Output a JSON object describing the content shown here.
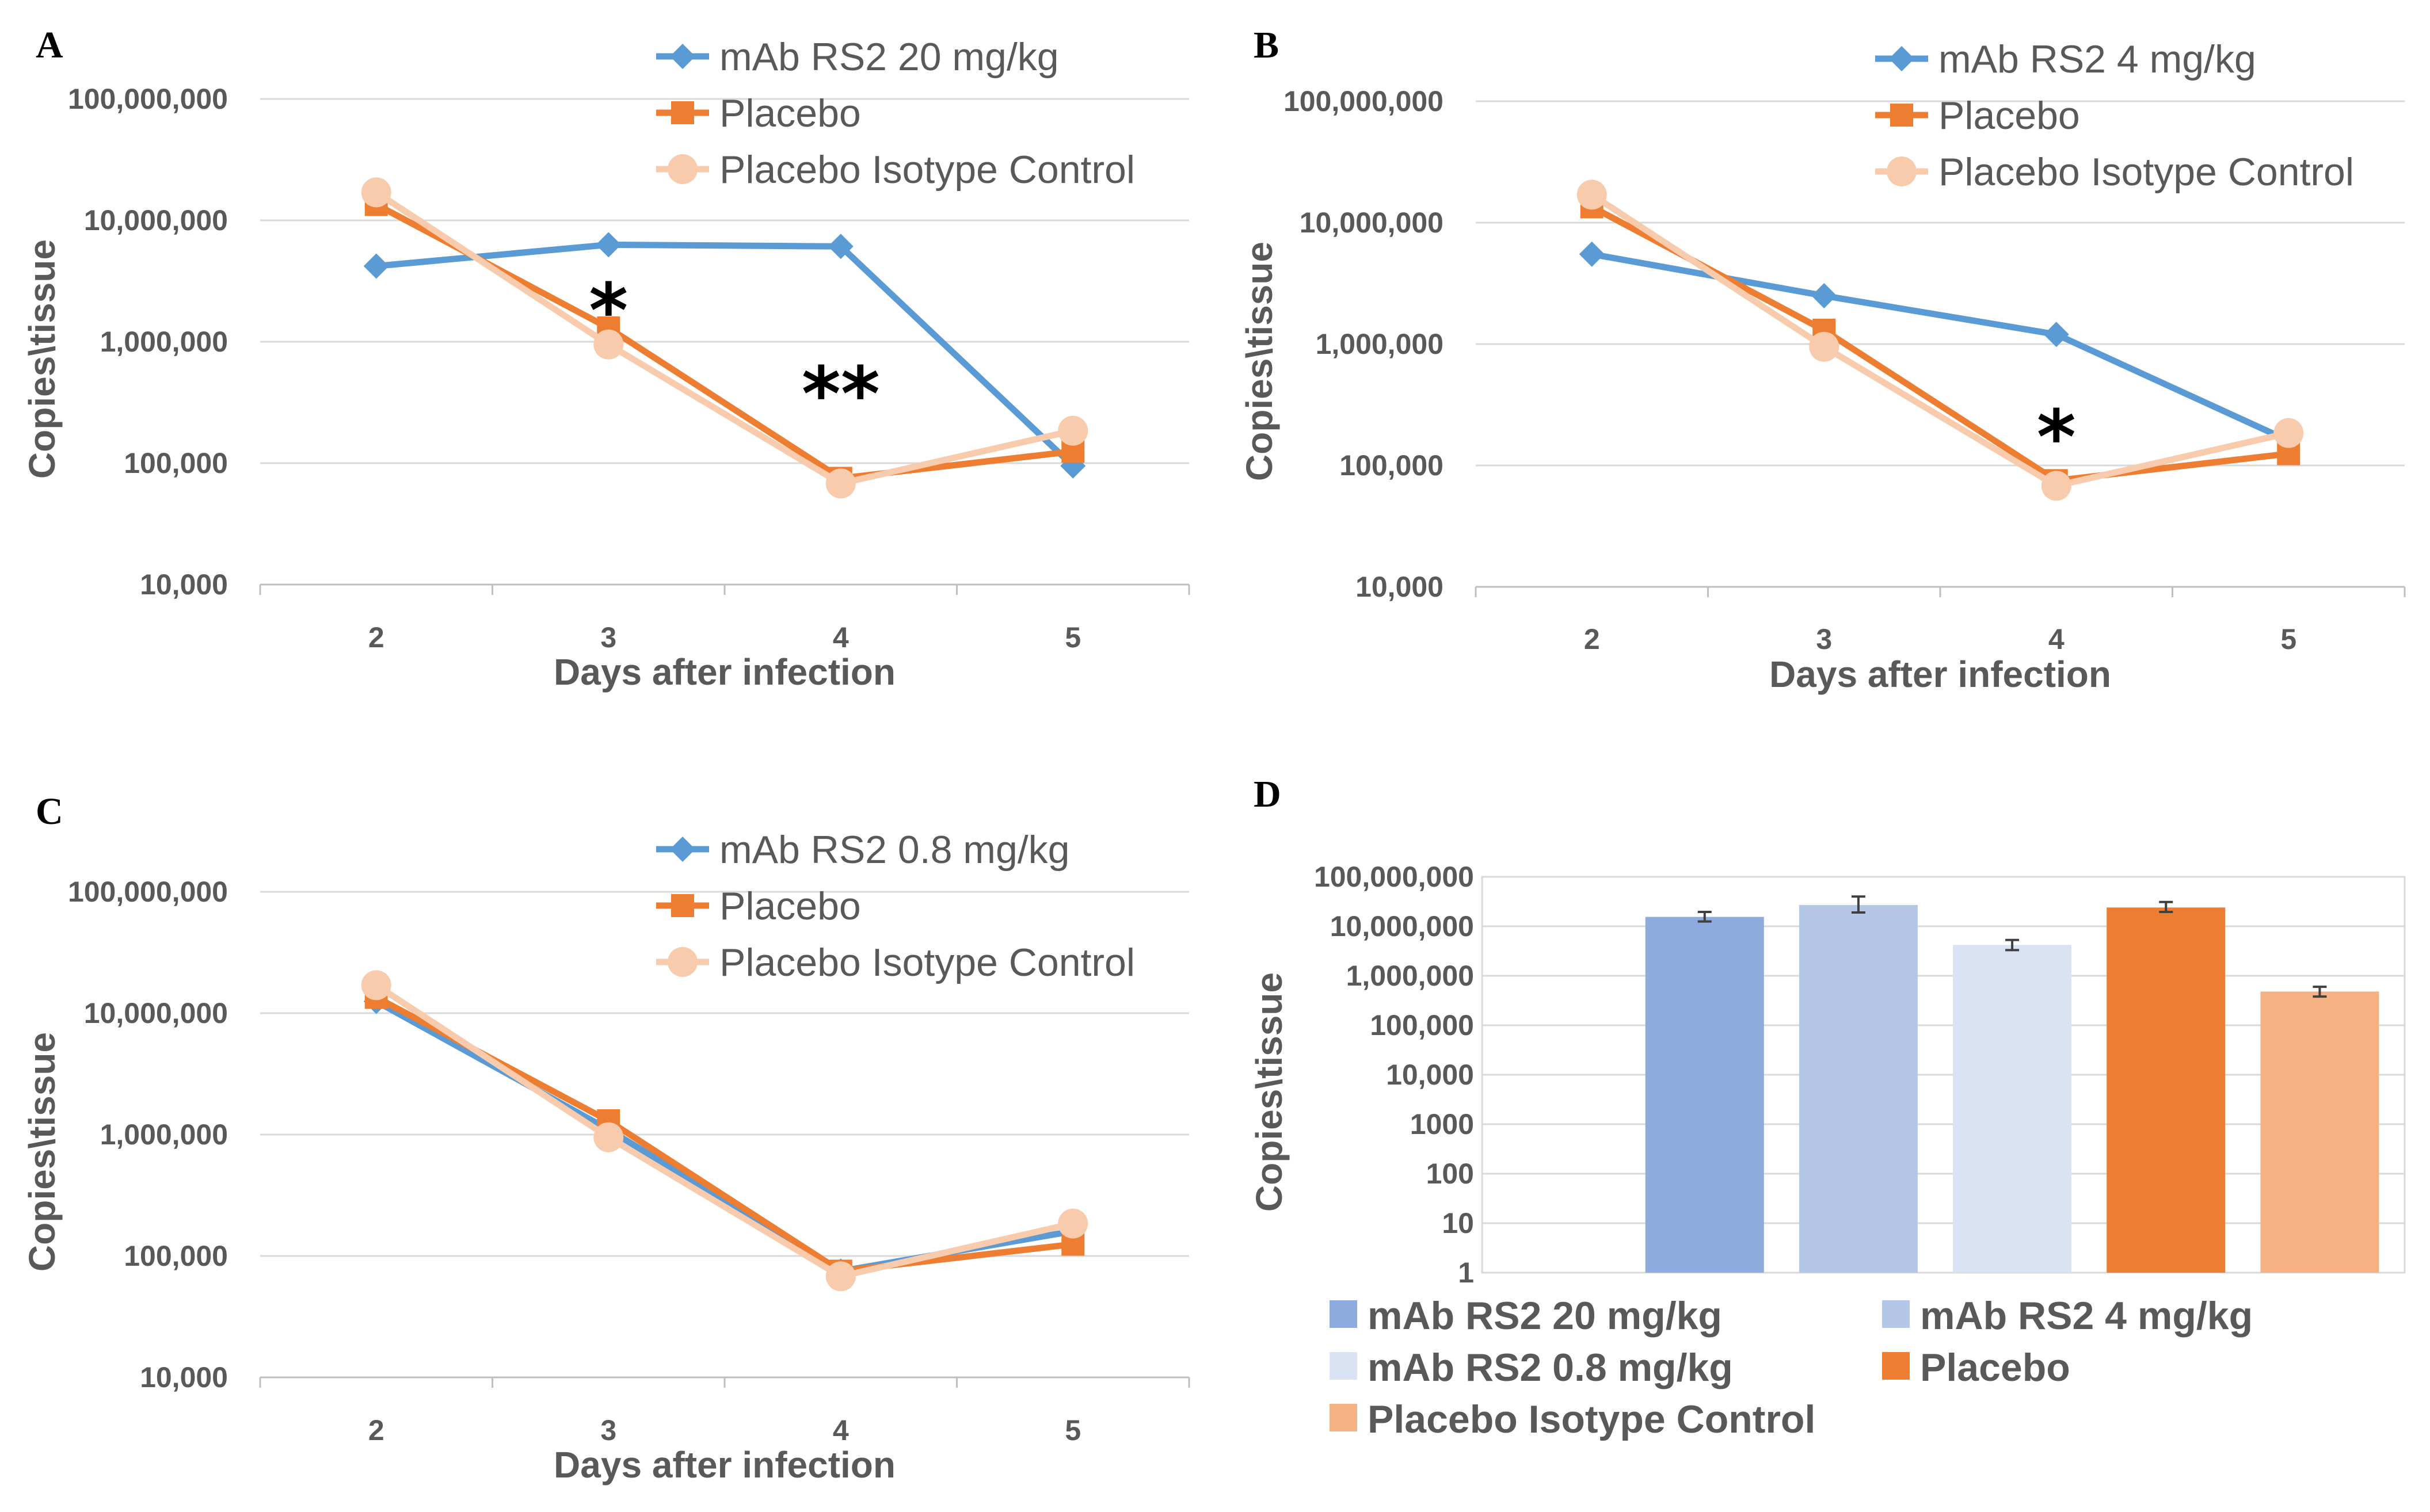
{
  "chart_data": [
    {
      "panel": "A",
      "type": "line",
      "yscale": "log",
      "xlabel": "Days after infection",
      "ylabel": "Copies\\tissue",
      "categories": [
        "2",
        "3",
        "4",
        "5"
      ],
      "y_ticks": [
        "10,000",
        "100,000",
        "1,000,000",
        "10,000,000",
        "100,000,000"
      ],
      "ylim": [
        10000,
        100000000
      ],
      "series": [
        {
          "name": "mAb RS2 20 mg/kg",
          "color": "#5b9bd5",
          "marker": "diamond",
          "values": [
            4200000,
            6300000,
            6100000,
            95000
          ]
        },
        {
          "name": "Placebo",
          "color": "#ed7d31",
          "marker": "square",
          "values": [
            13500000,
            1300000,
            75000,
            125000
          ]
        },
        {
          "name": "Placebo Isotype Control",
          "color": "#f8cbad",
          "marker": "circle",
          "values": [
            17000000,
            950000,
            68000,
            185000
          ]
        }
      ],
      "annotations": [
        {
          "text": "*",
          "x": "3"
        },
        {
          "text": "**",
          "x": "4"
        }
      ]
    },
    {
      "panel": "B",
      "type": "line",
      "yscale": "log",
      "xlabel": "Days after infection",
      "ylabel": "Copies\\tissue",
      "categories": [
        "2",
        "3",
        "4",
        "5"
      ],
      "y_ticks": [
        "10,000",
        "100,000",
        "1,000,000",
        "10,000,000",
        "100,000,000"
      ],
      "ylim": [
        10000,
        100000000
      ],
      "series": [
        {
          "name": "mAb RS2 4 mg/kg",
          "color": "#5b9bd5",
          "marker": "diamond",
          "values": [
            5500000,
            2500000,
            1200000,
            160000
          ]
        },
        {
          "name": "Placebo",
          "color": "#ed7d31",
          "marker": "square",
          "values": [
            13500000,
            1300000,
            75000,
            125000
          ]
        },
        {
          "name": "Placebo Isotype Control",
          "color": "#f8cbad",
          "marker": "circle",
          "values": [
            17000000,
            950000,
            68000,
            185000
          ]
        }
      ],
      "annotations": [
        {
          "text": "*",
          "x": "4"
        }
      ]
    },
    {
      "panel": "C",
      "type": "line",
      "yscale": "log",
      "xlabel": "Days after infection",
      "ylabel": "Copies\\tissue",
      "categories": [
        "2",
        "3",
        "4",
        "5"
      ],
      "y_ticks": [
        "10,000",
        "100,000",
        "1,000,000",
        "10,000,000",
        "100,000,000"
      ],
      "ylim": [
        10000,
        100000000
      ],
      "series": [
        {
          "name": "mAb RS2 0.8 mg/kg",
          "color": "#5b9bd5",
          "marker": "diamond",
          "values": [
            12500000,
            1100000,
            75000,
            160000
          ]
        },
        {
          "name": "Placebo",
          "color": "#ed7d31",
          "marker": "square",
          "values": [
            13500000,
            1300000,
            75000,
            125000
          ]
        },
        {
          "name": "Placebo Isotype Control",
          "color": "#f8cbad",
          "marker": "circle",
          "values": [
            17000000,
            950000,
            68000,
            185000
          ]
        }
      ],
      "annotations": []
    },
    {
      "panel": "D",
      "type": "bar",
      "yscale": "log",
      "ylabel": "Copies\\tissue",
      "y_ticks": [
        "1",
        "10",
        "100",
        "1000",
        "10,000",
        "100,000",
        "1,000,000",
        "10,000,000",
        "100,000,000"
      ],
      "ylim": [
        1,
        100000000
      ],
      "categories": [
        "mAb RS2 20 mg/kg",
        "mAb RS2 4 mg/kg",
        "mAb RS2 0.8 mg/kg",
        "Placebo",
        "Placebo Isotype Control"
      ],
      "values": [
        15500000,
        27000000,
        4200000,
        24000000,
        480000
      ],
      "error_low": [
        12500000,
        19000000,
        3300000,
        19500000,
        380000
      ],
      "error_high": [
        19500000,
        40000000,
        5300000,
        31000000,
        600000
      ],
      "colors": [
        "#8faadc",
        "#b4c7e7",
        "#dae3f3",
        "#ed7d31",
        "#f4b183"
      ]
    }
  ]
}
